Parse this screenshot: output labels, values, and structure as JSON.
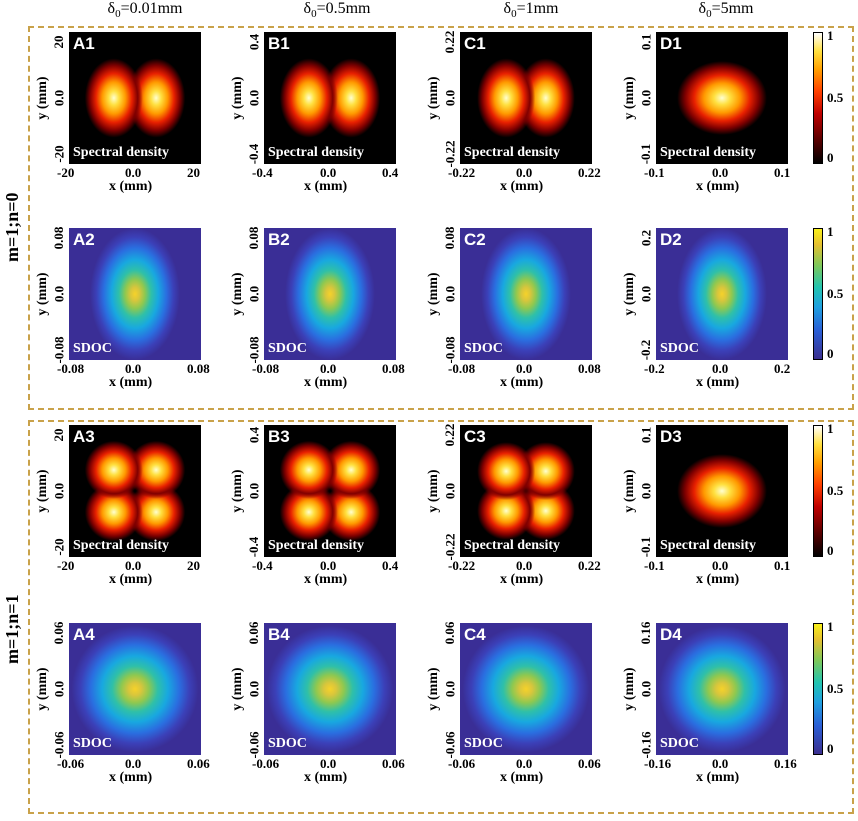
{
  "columns": [
    "δ0=0.01mm",
    "δ0=0.5mm",
    "δ0=1mm",
    "δ0=5mm"
  ],
  "column_parts": [
    {
      "pre": "δ",
      "sub": "0",
      "post": "=0.01mm"
    },
    {
      "pre": "δ",
      "sub": "0",
      "post": "=0.5mm"
    },
    {
      "pre": "δ",
      "sub": "0",
      "post": "=1mm"
    },
    {
      "pre": "δ",
      "sub": "0",
      "post": "=5mm"
    }
  ],
  "sections": [
    {
      "label": "m=1;n=0"
    },
    {
      "label": "m=1;n=1"
    }
  ],
  "axis": {
    "xlabel": "x (mm)",
    "ylabel": "y (mm)"
  },
  "captions": {
    "density": "Spectral density",
    "sdoc": "SDOC"
  },
  "colorbar": {
    "ticks": [
      "1",
      "0.5",
      "0"
    ]
  },
  "chart_data": [
    {
      "type": "heatmap",
      "panel": "A1",
      "caption": "Spectral density",
      "range": [
        -20,
        20
      ],
      "ticks_x": [
        "-20",
        "0.0",
        "20"
      ],
      "ticks_y": [
        "20",
        "0.0",
        "-20"
      ],
      "colormap": "hot",
      "lobes": [
        [
          -0.32,
          0
        ],
        [
          0.32,
          0
        ]
      ]
    },
    {
      "type": "heatmap",
      "panel": "B1",
      "caption": "Spectral density",
      "range": [
        -0.4,
        0.4
      ],
      "ticks_x": [
        "-0.4",
        "0.0",
        "0.4"
      ],
      "ticks_y": [
        "0.4",
        "0.0",
        "-0.4"
      ],
      "colormap": "hot",
      "lobes": [
        [
          -0.32,
          0
        ],
        [
          0.32,
          0
        ]
      ]
    },
    {
      "type": "heatmap",
      "panel": "C1",
      "caption": "Spectral density",
      "range": [
        -0.22,
        0.22
      ],
      "ticks_x": [
        "-0.22",
        "0.0",
        "0.22"
      ],
      "ticks_y": [
        "0.22",
        "0.0",
        "-0.22"
      ],
      "colormap": "hot",
      "lobes": [
        [
          -0.3,
          0
        ],
        [
          0.3,
          0
        ]
      ]
    },
    {
      "type": "heatmap",
      "panel": "D1",
      "caption": "Spectral density",
      "range": [
        -0.1,
        0.1
      ],
      "ticks_x": [
        "-0.1",
        "0.0",
        "0.1"
      ],
      "ticks_y": [
        "0.1",
        "0.0",
        "-0.1"
      ],
      "colormap": "hot",
      "lobes": [
        [
          0,
          0
        ]
      ]
    },
    {
      "type": "heatmap",
      "panel": "A2",
      "caption": "SDOC",
      "range": [
        -0.08,
        0.08
      ],
      "ticks_x": [
        "-0.08",
        "0.0",
        "0.08"
      ],
      "ticks_y": [
        "0.08",
        "0.0",
        "-0.08"
      ],
      "colormap": "parula"
    },
    {
      "type": "heatmap",
      "panel": "B2",
      "caption": "SDOC",
      "range": [
        -0.08,
        0.08
      ],
      "ticks_x": [
        "-0.08",
        "0.0",
        "0.08"
      ],
      "ticks_y": [
        "0.08",
        "0.0",
        "-0.08"
      ],
      "colormap": "parula"
    },
    {
      "type": "heatmap",
      "panel": "C2",
      "caption": "SDOC",
      "range": [
        -0.08,
        0.08
      ],
      "ticks_x": [
        "-0.08",
        "0.0",
        "0.08"
      ],
      "ticks_y": [
        "0.08",
        "0.0",
        "-0.08"
      ],
      "colormap": "parula"
    },
    {
      "type": "heatmap",
      "panel": "D2",
      "caption": "SDOC",
      "range": [
        -0.2,
        0.2
      ],
      "ticks_x": [
        "-0.2",
        "0.0",
        "0.2"
      ],
      "ticks_y": [
        "0.2",
        "0.0",
        "-0.2"
      ],
      "colormap": "parula"
    },
    {
      "type": "heatmap",
      "panel": "A3",
      "caption": "Spectral density",
      "range": [
        -20,
        20
      ],
      "ticks_x": [
        "-20",
        "0.0",
        "20"
      ],
      "ticks_y": [
        "20",
        "0.0",
        "-20"
      ],
      "colormap": "hot",
      "lobes": [
        [
          -0.32,
          -0.32
        ],
        [
          0.32,
          -0.32
        ],
        [
          -0.32,
          0.32
        ],
        [
          0.32,
          0.32
        ]
      ]
    },
    {
      "type": "heatmap",
      "panel": "B3",
      "caption": "Spectral density",
      "range": [
        -0.4,
        0.4
      ],
      "ticks_x": [
        "-0.4",
        "0.0",
        "0.4"
      ],
      "ticks_y": [
        "0.4",
        "0.0",
        "-0.4"
      ],
      "colormap": "hot",
      "lobes": [
        [
          -0.32,
          -0.32
        ],
        [
          0.32,
          -0.32
        ],
        [
          -0.32,
          0.32
        ],
        [
          0.32,
          0.32
        ]
      ]
    },
    {
      "type": "heatmap",
      "panel": "C3",
      "caption": "Spectral density",
      "range": [
        -0.22,
        0.22
      ],
      "ticks_x": [
        "-0.22",
        "0.0",
        "0.22"
      ],
      "ticks_y": [
        "0.22",
        "0.0",
        "-0.22"
      ],
      "colormap": "hot",
      "lobes": [
        [
          -0.3,
          -0.3
        ],
        [
          0.3,
          -0.3
        ],
        [
          -0.3,
          0.3
        ],
        [
          0.3,
          0.3
        ]
      ]
    },
    {
      "type": "heatmap",
      "panel": "D3",
      "caption": "Spectral density",
      "range": [
        -0.1,
        0.1
      ],
      "ticks_x": [
        "-0.1",
        "0.0",
        "0.1"
      ],
      "ticks_y": [
        "0.1",
        "0.0",
        "-0.1"
      ],
      "colormap": "hot",
      "lobes": [
        [
          0,
          0
        ]
      ]
    },
    {
      "type": "heatmap",
      "panel": "A4",
      "caption": "SDOC",
      "range": [
        -0.06,
        0.06
      ],
      "ticks_x": [
        "-0.06",
        "0.0",
        "0.06"
      ],
      "ticks_y": [
        "0.06",
        "0.0",
        "-0.06"
      ],
      "colormap": "parula"
    },
    {
      "type": "heatmap",
      "panel": "B4",
      "caption": "SDOC",
      "range": [
        -0.06,
        0.06
      ],
      "ticks_x": [
        "-0.06",
        "0.0",
        "0.06"
      ],
      "ticks_y": [
        "0.06",
        "0.0",
        "-0.06"
      ],
      "colormap": "parula"
    },
    {
      "type": "heatmap",
      "panel": "C4",
      "caption": "SDOC",
      "range": [
        -0.06,
        0.06
      ],
      "ticks_x": [
        "-0.06",
        "0.0",
        "0.06"
      ],
      "ticks_y": [
        "0.06",
        "0.0",
        "-0.06"
      ],
      "colormap": "parula"
    },
    {
      "type": "heatmap",
      "panel": "D4",
      "caption": "SDOC",
      "range": [
        -0.16,
        0.16
      ],
      "ticks_x": [
        "-0.16",
        "0.0",
        "0.16"
      ],
      "ticks_y": [
        "0.16",
        "0.0",
        "-0.16"
      ],
      "colormap": "parula"
    }
  ]
}
